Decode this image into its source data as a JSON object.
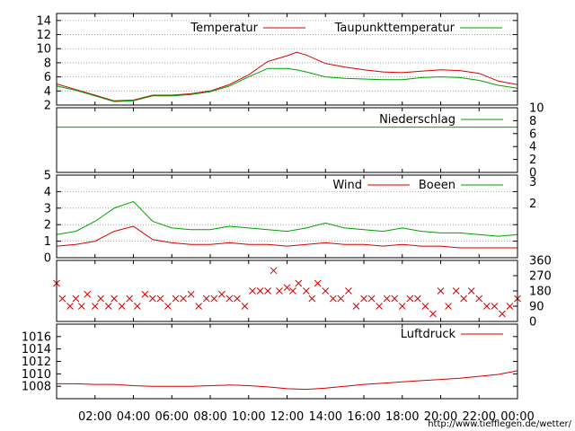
{
  "source_url": "http://www.tiefflegen.de/wetter/",
  "colors": {
    "red": "#d40000",
    "green": "#00a000",
    "grid": "#909090",
    "axis": "#000000",
    "link": "#d40000"
  },
  "chart_data": [
    {
      "id": "temperature",
      "type": "line",
      "title": "",
      "ylim": [
        2,
        15
      ],
      "y_ticks": [
        "2",
        "4",
        "6",
        "8",
        "10",
        "12",
        "14"
      ],
      "grid": true,
      "legend_placement": "top-right",
      "series": [
        {
          "name": "Temperatur",
          "color": "#d40000",
          "x": [
            0,
            1,
            2,
            3,
            4,
            5,
            6,
            7,
            8,
            9,
            10,
            11,
            12,
            12.5,
            13,
            14,
            15,
            16,
            17,
            18,
            19,
            20,
            21,
            22,
            23,
            24
          ],
          "y": [
            5.0,
            4.2,
            3.4,
            2.6,
            2.7,
            3.4,
            3.4,
            3.6,
            4.0,
            4.9,
            6.3,
            8.2,
            9.0,
            9.5,
            9.1,
            7.9,
            7.4,
            7.0,
            6.7,
            6.6,
            6.8,
            7.0,
            6.9,
            6.5,
            5.4,
            4.9
          ]
        },
        {
          "name": "Taupunkttemperatur",
          "color": "#00a000",
          "x": [
            0,
            1,
            2,
            3,
            4,
            5,
            6,
            7,
            8,
            9,
            10,
            11,
            12,
            12.5,
            13,
            14,
            15,
            16,
            17,
            18,
            19,
            20,
            21,
            22,
            23,
            24
          ],
          "y": [
            4.7,
            4.1,
            3.3,
            2.5,
            2.6,
            3.3,
            3.3,
            3.5,
            3.9,
            4.7,
            6.0,
            7.2,
            7.2,
            7.0,
            6.7,
            6.0,
            5.8,
            5.7,
            5.6,
            5.6,
            5.9,
            6.0,
            5.9,
            5.5,
            4.8,
            4.4
          ]
        }
      ]
    },
    {
      "id": "precipitation",
      "type": "line",
      "title": "",
      "ylim": [
        0,
        10
      ],
      "y_ticks_right": [
        "0",
        "2",
        "4",
        "6",
        "8",
        "10"
      ],
      "legend_placement": "top-right",
      "series": [
        {
          "name": "Niederschlag",
          "color": "#00a000",
          "x": [
            0,
            24
          ],
          "y": [
            7,
            7
          ]
        }
      ]
    },
    {
      "id": "wind",
      "type": "line",
      "title": "",
      "ylim": [
        0,
        5
      ],
      "y_ticks": [
        "0",
        "1",
        "2",
        "3",
        "4",
        "5"
      ],
      "y_ticks_right_labels": [
        "2",
        "3"
      ],
      "grid": true,
      "legend_placement": "top-right",
      "series": [
        {
          "name": "Wind",
          "color": "#d40000",
          "x": [
            0,
            1,
            2,
            3,
            4,
            5,
            6,
            7,
            8,
            9,
            10,
            11,
            12,
            13,
            14,
            15,
            16,
            17,
            18,
            19,
            20,
            21,
            22,
            23,
            24
          ],
          "y": [
            0.7,
            0.8,
            1.0,
            1.6,
            1.9,
            1.1,
            0.9,
            0.8,
            0.8,
            0.9,
            0.8,
            0.8,
            0.7,
            0.8,
            0.9,
            0.8,
            0.8,
            0.7,
            0.8,
            0.7,
            0.7,
            0.6,
            0.6,
            0.6,
            0.6
          ]
        },
        {
          "name": "Boeen",
          "color": "#00a000",
          "x": [
            0,
            1,
            2,
            3,
            4,
            5,
            6,
            7,
            8,
            9,
            10,
            11,
            12,
            13,
            14,
            15,
            16,
            17,
            18,
            19,
            20,
            21,
            22,
            23,
            24
          ],
          "y": [
            1.4,
            1.6,
            2.2,
            3.0,
            3.4,
            2.2,
            1.8,
            1.7,
            1.7,
            1.9,
            1.8,
            1.7,
            1.6,
            1.8,
            2.1,
            1.8,
            1.7,
            1.6,
            1.8,
            1.6,
            1.5,
            1.5,
            1.4,
            1.3,
            1.4
          ]
        }
      ]
    },
    {
      "id": "wind_direction",
      "type": "scatter",
      "title": "",
      "ylim": [
        0,
        360
      ],
      "y_ticks_right": [
        "0",
        "90",
        "180",
        "270",
        "360"
      ],
      "series": [
        {
          "name": "",
          "color": "#d40000",
          "x": [
            0,
            0.3,
            0.7,
            1.0,
            1.3,
            1.6,
            2.0,
            2.3,
            2.7,
            3.0,
            3.4,
            3.8,
            4.2,
            4.6,
            5.0,
            5.4,
            5.8,
            6.2,
            6.6,
            7.0,
            7.4,
            7.8,
            8.2,
            8.6,
            9.0,
            9.4,
            9.8,
            10.2,
            10.6,
            11.0,
            11.3,
            11.6,
            12.0,
            12.3,
            12.6,
            13.0,
            13.3,
            13.6,
            14.0,
            14.4,
            14.8,
            15.2,
            15.6,
            16.0,
            16.4,
            16.8,
            17.2,
            17.6,
            18.0,
            18.4,
            18.8,
            19.2,
            19.6,
            20.0,
            20.4,
            20.8,
            21.2,
            21.6,
            22.0,
            22.4,
            22.8,
            23.2,
            23.6,
            24.0
          ],
          "y": [
            225,
            135,
            90,
            135,
            90,
            160,
            90,
            135,
            90,
            135,
            90,
            135,
            90,
            160,
            135,
            135,
            90,
            135,
            135,
            160,
            90,
            135,
            135,
            160,
            135,
            135,
            90,
            180,
            180,
            180,
            300,
            180,
            200,
            180,
            225,
            180,
            135,
            225,
            180,
            135,
            135,
            180,
            90,
            135,
            135,
            90,
            135,
            135,
            90,
            135,
            135,
            90,
            45,
            180,
            90,
            180,
            135,
            180,
            135,
            90,
            90,
            45,
            90,
            135
          ]
        }
      ]
    },
    {
      "id": "pressure",
      "type": "line",
      "title": "",
      "ylim": [
        1006,
        1018
      ],
      "y_ticks": [
        "1008",
        "1010",
        "1012",
        "1014",
        "1016"
      ],
      "x_ticks": [
        "02:00",
        "04:00",
        "06:00",
        "08:00",
        "10:00",
        "12:00",
        "14:00",
        "16:00",
        "18:00",
        "20:00",
        "22:00",
        "00:00"
      ],
      "legend_placement": "top-right",
      "series": [
        {
          "name": "Luftdruck",
          "color": "#d40000",
          "x": [
            0,
            1,
            2,
            3,
            4,
            5,
            6,
            7,
            8,
            9,
            10,
            11,
            12,
            13,
            14,
            15,
            16,
            17,
            18,
            19,
            20,
            21,
            22,
            23,
            24
          ],
          "y": [
            1008.4,
            1008.4,
            1008.3,
            1008.3,
            1008.1,
            1008.0,
            1008.0,
            1008.0,
            1008.1,
            1008.2,
            1008.1,
            1007.9,
            1007.6,
            1007.5,
            1007.7,
            1008.0,
            1008.3,
            1008.5,
            1008.7,
            1008.9,
            1009.1,
            1009.3,
            1009.6,
            1009.9,
            1010.5
          ]
        }
      ]
    }
  ]
}
